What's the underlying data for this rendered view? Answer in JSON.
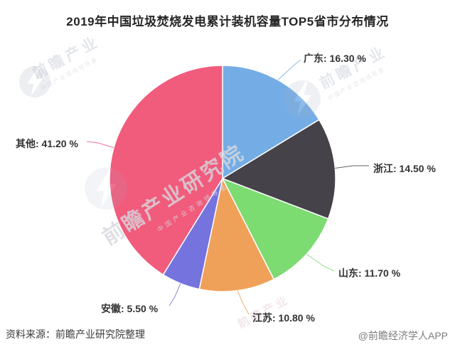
{
  "chart_data": {
    "type": "pie",
    "title": "2019年中国垃圾焚烧发电累计装机容量TOP5省市分布情况",
    "unit": "%",
    "categories": [
      "广东",
      "浙江",
      "山东",
      "江苏",
      "安徽",
      "其他"
    ],
    "values": [
      16.3,
      14.5,
      11.7,
      10.8,
      5.5,
      41.2
    ],
    "labels": [
      "广东: 16.30 %",
      "浙江: 14.50 %",
      "山东: 11.70 %",
      "江苏: 10.80 %",
      "安徽: 5.50 %",
      "其他: 41.20 %"
    ],
    "colors": [
      "#74ade6",
      "#454349",
      "#7cdb71",
      "#f0a159",
      "#7573de",
      "#f15b7c"
    ],
    "start_angle": "top",
    "direction": "clockwise",
    "legend_position": "none",
    "label_style": "outside-with-leader-lines"
  },
  "footer": {
    "source": "资料来源：前瞻产业研究院整理",
    "credit": "@前瞻经济学人APP"
  },
  "watermark": {
    "brand": "前瞻产业研究院",
    "brand_short": "前瞻产业",
    "subtext": "中国产业咨询领导者",
    "logo": "qianzhan-lightning-circle"
  }
}
